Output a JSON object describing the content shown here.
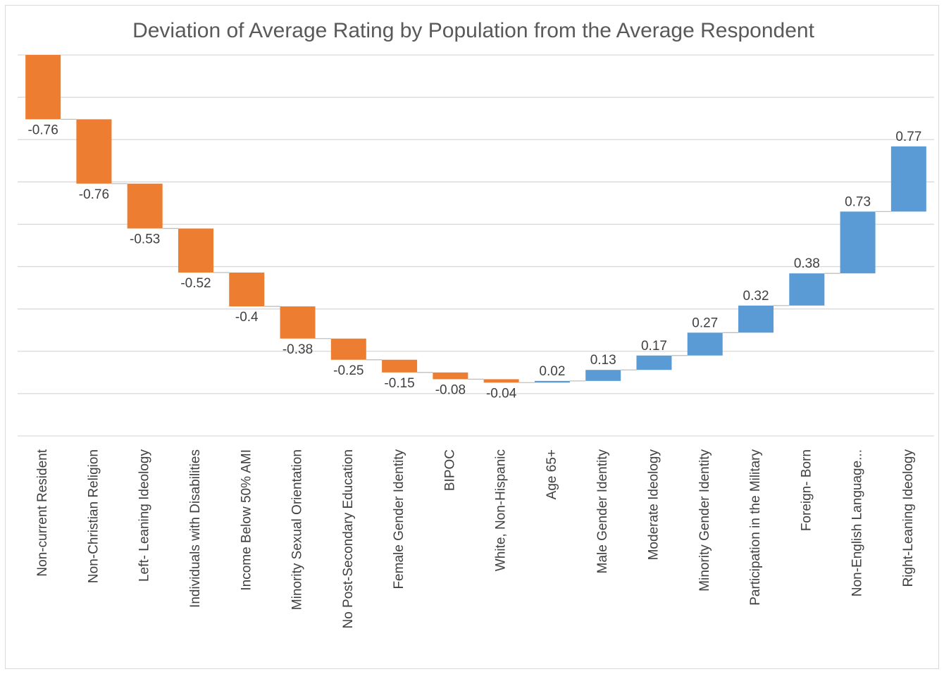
{
  "chart_data": {
    "type": "waterfall",
    "title": "Deviation of Average Rating by Population from the Average Respondent",
    "categories": [
      "Non-current Resident",
      "Non-Christian Religion",
      "Left- Leaning Ideology",
      "Individuals with Disabilities",
      "Income Below 50% AMI",
      "Minority Sexual Orientation",
      "No Post-Secondary Education",
      "Female Gender Identity",
      "BIPOC",
      "White, Non-Hispanic",
      "Age 65+",
      "Male Gender Identity",
      "Moderate Ideology",
      "Minority Gender Identity",
      "Participation in the Military",
      "Foreign- Born",
      "Non-English Language...",
      "Right-Leaning Ideology"
    ],
    "values": [
      -0.76,
      -0.76,
      -0.53,
      -0.52,
      -0.4,
      -0.38,
      -0.25,
      -0.15,
      -0.08,
      -0.04,
      0.02,
      0.13,
      0.17,
      0.27,
      0.32,
      0.38,
      0.73,
      0.77
    ],
    "increase_color": "#5b9bd5",
    "decrease_color": "#ed7d31",
    "ylim": [
      -4.5,
      0
    ],
    "yticks": [
      0,
      -0.5,
      -1,
      -1.5,
      -2,
      -2.5,
      -3,
      -3.5,
      -4,
      -4.5
    ],
    "grid": true
  }
}
